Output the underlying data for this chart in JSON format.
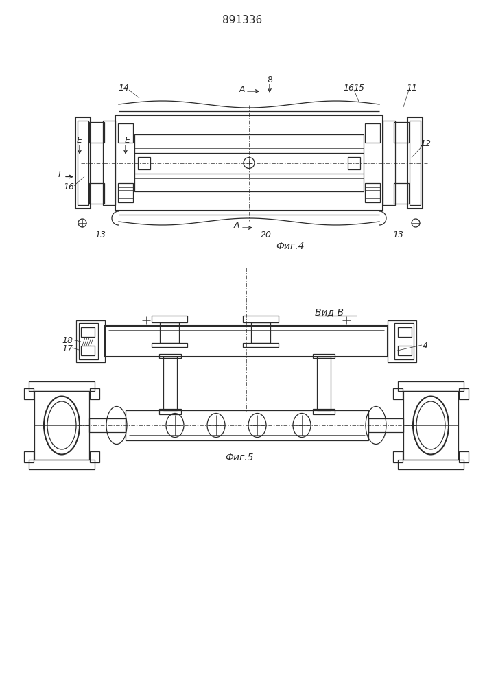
{
  "title": "891336",
  "fig4_label": "Фиг.4",
  "fig5_label": "Фиг.5",
  "view_b_label": "Вид В",
  "bg_color": "#ffffff",
  "line_color": "#2a2a2a",
  "lw": 0.9,
  "lw2": 1.5,
  "lw1": 0.5
}
